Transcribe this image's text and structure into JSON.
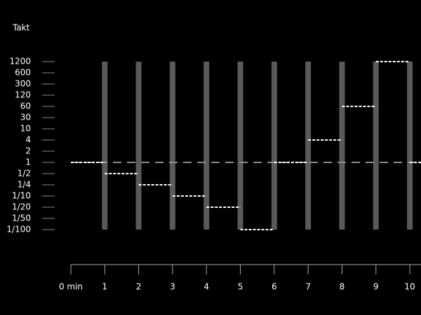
{
  "chart_data": {
    "type": "step",
    "y_label": "Takt",
    "x": [
      0,
      1,
      2,
      3,
      4,
      5,
      6,
      7,
      8,
      9,
      10
    ],
    "series": [
      {
        "color": "#ffffff",
        "values": [
          1,
          0.5,
          0.25,
          0.1,
          0.05,
          0.01,
          1,
          4,
          60,
          1200,
          1
        ]
      }
    ],
    "reference_line": 1,
    "reference_color": "#8c8c8c",
    "bar_color": "#5a5a5a",
    "xlim": [
      0,
      10.33
    ],
    "xticks": [
      {
        "value": 0,
        "label": "0 min"
      },
      1,
      2,
      3,
      4,
      5,
      6,
      7,
      8,
      9,
      10
    ],
    "yticks": [
      1200,
      600,
      300,
      120,
      60,
      30,
      10,
      4,
      2,
      1,
      {
        "value": 0.5,
        "label": "1/2"
      },
      {
        "value": 0.25,
        "label": "1/4"
      },
      {
        "value": 0.1,
        "label": "1/10"
      },
      {
        "value": 0.05,
        "label": "1/20"
      },
      {
        "value": 0.02,
        "label": "1/50"
      },
      {
        "value": 0.01,
        "label": "1/100"
      }
    ]
  }
}
